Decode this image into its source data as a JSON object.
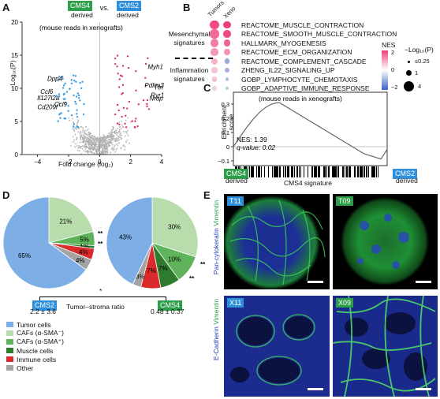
{
  "panels": {
    "A": "A",
    "B": "B",
    "C": "C",
    "D": "D",
    "E": "E"
  },
  "panelA": {
    "tag_left": "CMS4",
    "sub_left": "derived",
    "vs": "vs.",
    "tag_right": "CMS2",
    "sub_right": "derived",
    "title": "(mouse reads in xenografts)",
    "ylabel": "−Log₁₀(P)",
    "xlabel": "Fold change (log₂)",
    "genes_left": [
      "Dpp4",
      "Ccl6",
      "Il127l2a",
      "Ccl9",
      "Cd209f"
    ],
    "genes_right": [
      "Myh1",
      "Pdlim3",
      "Ttn",
      "Ryr1",
      "Nrap"
    ]
  },
  "chart_data": {
    "type": "scatter",
    "title": "(mouse reads in xenografts)",
    "xlabel": "Fold change (log₂)",
    "ylabel": "−Log₁₀(P)",
    "xlim": [
      -5,
      4
    ],
    "ylim": [
      0,
      20
    ],
    "xticks": [
      -4,
      -2,
      0,
      2,
      4
    ],
    "yticks": [
      0,
      5,
      10,
      15,
      20
    ],
    "labeled_points": [
      {
        "label": "Dpp4",
        "x": -2.2,
        "y": 11.5
      },
      {
        "label": "Ccl6",
        "x": -2.8,
        "y": 9.5
      },
      {
        "label": "Il127l2a",
        "x": -2.4,
        "y": 8.6
      },
      {
        "label": "Ccl9",
        "x": -1.9,
        "y": 7.6
      },
      {
        "label": "Cd209f",
        "x": -2.5,
        "y": 7.2
      },
      {
        "label": "Myh1",
        "x": 2.9,
        "y": 13.3
      },
      {
        "label": "Pdlim3",
        "x": 2.7,
        "y": 10.5
      },
      {
        "label": "Ttn",
        "x": 3.3,
        "y": 10.2
      },
      {
        "label": "Ryr1",
        "x": 3.1,
        "y": 9.0
      },
      {
        "label": "Nrap",
        "x": 3.0,
        "y": 8.5
      }
    ]
  },
  "panelB": {
    "col_headers": [
      "Tumors",
      "Xeno"
    ],
    "group_mes": "Mesenchymal signatures",
    "group_inf": "Inflammation signatures",
    "rows": [
      {
        "name": "REACTOME_MUSCLE_CONTRACTION",
        "c": [
          "#f24a7e",
          "#ee3f78"
        ]
      },
      {
        "name": "REACTOME_SMOOTH_MUSCLE_CONTRACTION",
        "c": [
          "#f06a93",
          "#ec4d80"
        ]
      },
      {
        "name": "HALLMARK_MYOGENESIS",
        "c": [
          "#f27fa2",
          "#ee6690"
        ]
      },
      {
        "name": "REACTOME_ECM_ORGANIZATION",
        "c": [
          "#f39ab6",
          "#f08fae"
        ]
      },
      {
        "name": "REACTOME_COMPLEMENT_CASCADE",
        "c": [
          "#f5b3c7",
          "#9aa8d8"
        ]
      },
      {
        "name": "ZHENG_IL22_SIGNALING_UP",
        "c": [
          "#f3c5d3",
          "#a7b2dd"
        ]
      },
      {
        "name": "GOBP_LYMPHOCYTE_CHEMOTAXIS",
        "c": [
          "#f5bfcf",
          "#b6bfe2"
        ]
      },
      {
        "name": "GOBP_ADAPTIVE_IMMUNE_RESPONSE",
        "c": [
          "#f1d0da",
          "#c2c8e6"
        ]
      }
    ],
    "nes_title": "NES",
    "nes_ticks": [
      "2",
      "0",
      "−2"
    ],
    "p_title": "−Log₁₀(P)",
    "p_items": [
      "≤0.25",
      "1",
      "4"
    ]
  },
  "panelC": {
    "title": "(mouse reads in xenografts)",
    "ylabel": "Enrichment score",
    "yticks": [
      "0.3",
      "0.2",
      "0.1",
      "0",
      "−0.1"
    ],
    "nes": "NES: 1.39",
    "qvalue": "q-value: 0.02",
    "tag_left": "CMS4",
    "sub_left": "derived",
    "xlabel": "CMS4 signature",
    "tag_right": "CMS2",
    "sub_right": "derived"
  },
  "panelD": {
    "pie1": [
      {
        "label": "65%",
        "value": 65,
        "color": "#7eaee6"
      },
      {
        "label": "21%",
        "value": 21,
        "color": "#b8dcac"
      },
      {
        "label": "5%",
        "value": 5,
        "color": "#5fb35a"
      },
      {
        "label": "1%",
        "value": 1,
        "color": "#2e7a2e"
      },
      {
        "label": "4%",
        "value": 4,
        "color": "#d92b2b"
      },
      {
        "label": "4%",
        "value": 4,
        "color": "#a3a3a3"
      }
    ],
    "pie2": [
      {
        "label": "43%",
        "value": 43,
        "color": "#7eaee6"
      },
      {
        "label": "30%",
        "value": 30,
        "color": "#b8dcac"
      },
      {
        "label": "10%",
        "value": 10,
        "color": "#5fb35a"
      },
      {
        "label": "7%",
        "value": 7,
        "color": "#2e7a2e"
      },
      {
        "label": "7%",
        "value": 7,
        "color": "#d92b2b"
      },
      {
        "label": "3%",
        "value": 3,
        "color": "#a3a3a3"
      }
    ],
    "stars": "**",
    "sig": "*",
    "tag_left": "CMS2",
    "val_left": "2.2 ± 3.6",
    "ratio_label": "Tumor–stroma ratio",
    "tag_right": "CMS4",
    "val_right": "0.48 ± 0.37",
    "legend": [
      {
        "label": "Tumor cells",
        "color": "#7eaee6"
      },
      {
        "label": "CAFs (α-SMA⁻)",
        "color": "#b8dcac"
      },
      {
        "label": "CAFs (α-SMA⁺)",
        "color": "#5fb35a"
      },
      {
        "label": "Muscle cells",
        "color": "#2e7a2e"
      },
      {
        "label": "Immune cells",
        "color": "#d92b2b"
      },
      {
        "label": "Other",
        "color": "#a3a3a3"
      }
    ]
  },
  "panelE": {
    "ylabel_top_a": "Pan-cytokeratin",
    "ylabel_top_b": "Vimentin",
    "ylabel_bot_a": "E-Cadherin",
    "ylabel_bot_b": "Vimentin",
    "t1": "T11",
    "t2": "T09",
    "t3": "X11",
    "t4": "X09"
  }
}
